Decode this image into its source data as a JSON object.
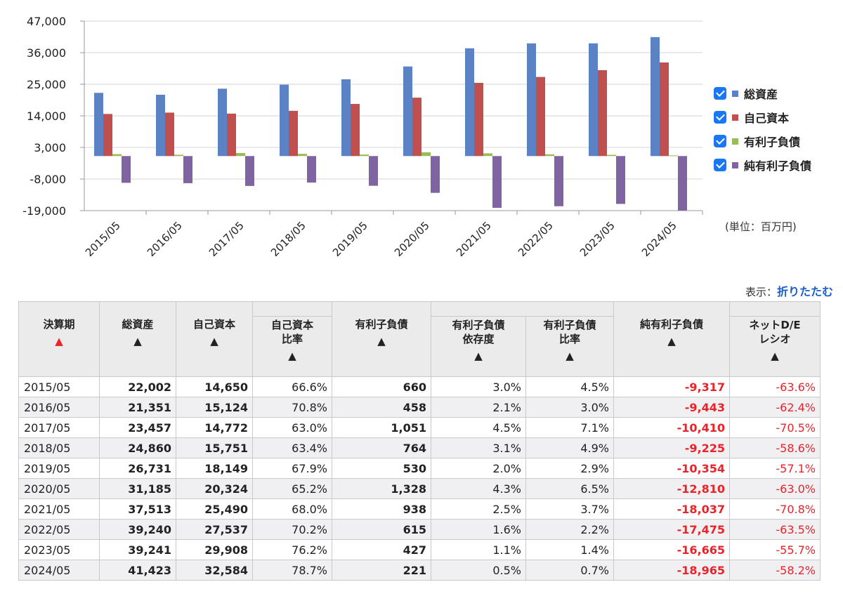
{
  "chart_data": {
    "type": "bar",
    "categories": [
      "2015/05",
      "2016/05",
      "2017/05",
      "2018/05",
      "2019/05",
      "2020/05",
      "2021/05",
      "2022/05",
      "2023/05",
      "2024/05"
    ],
    "series": [
      {
        "name": "総資産",
        "color": "#5b82c4",
        "values": [
          22002,
          21351,
          23457,
          24860,
          26731,
          31185,
          37513,
          39240,
          39241,
          41423
        ]
      },
      {
        "name": "自己資本",
        "color": "#c0504d",
        "values": [
          14650,
          15124,
          14772,
          15751,
          18149,
          20324,
          25490,
          27537,
          29908,
          32584
        ]
      },
      {
        "name": "有利子負債",
        "color": "#9bbb59",
        "values": [
          660,
          458,
          1051,
          764,
          530,
          1328,
          938,
          615,
          427,
          221
        ]
      },
      {
        "name": "純有利子負債",
        "color": "#8064a2",
        "values": [
          -9317,
          -9443,
          -10410,
          -9225,
          -10354,
          -12810,
          -18037,
          -17475,
          -16665,
          -18965
        ]
      }
    ],
    "yticks": [
      "47,000",
      "36,000",
      "25,000",
      "14,000",
      "3,000",
      "-8,000",
      "-19,000"
    ],
    "ylim": [
      -19000,
      47000
    ],
    "legend_position": "right",
    "grid": true,
    "unit": "(単位：百万円)"
  },
  "display": {
    "label": "表示：",
    "link": "折りたたむ"
  },
  "table": {
    "headers": {
      "period": "決算期",
      "total_assets": "総資産",
      "equity": "自己資本",
      "equity_ratio_1": "自己資本",
      "equity_ratio_2": "比率",
      "debt": "有利子負債",
      "dep_1": "有利子負債",
      "dep_2": "依存度",
      "debt_ratio_1": "有利子負債",
      "debt_ratio_2": "比率",
      "net_debt": "純有利子負債",
      "de_1": "ネットD/E",
      "de_2": "レシオ",
      "sort_up": "▲"
    },
    "rows": [
      {
        "period": "2015/05",
        "total_assets": "22,002",
        "equity": "14,650",
        "equity_ratio": "66.6%",
        "debt": "660",
        "dependency": "3.0%",
        "debt_ratio": "4.5%",
        "net_debt": "-9,317",
        "net_de": "-63.6%"
      },
      {
        "period": "2016/05",
        "total_assets": "21,351",
        "equity": "15,124",
        "equity_ratio": "70.8%",
        "debt": "458",
        "dependency": "2.1%",
        "debt_ratio": "3.0%",
        "net_debt": "-9,443",
        "net_de": "-62.4%"
      },
      {
        "period": "2017/05",
        "total_assets": "23,457",
        "equity": "14,772",
        "equity_ratio": "63.0%",
        "debt": "1,051",
        "dependency": "4.5%",
        "debt_ratio": "7.1%",
        "net_debt": "-10,410",
        "net_de": "-70.5%"
      },
      {
        "period": "2018/05",
        "total_assets": "24,860",
        "equity": "15,751",
        "equity_ratio": "63.4%",
        "debt": "764",
        "dependency": "3.1%",
        "debt_ratio": "4.9%",
        "net_debt": "-9,225",
        "net_de": "-58.6%"
      },
      {
        "period": "2019/05",
        "total_assets": "26,731",
        "equity": "18,149",
        "equity_ratio": "67.9%",
        "debt": "530",
        "dependency": "2.0%",
        "debt_ratio": "2.9%",
        "net_debt": "-10,354",
        "net_de": "-57.1%"
      },
      {
        "period": "2020/05",
        "total_assets": "31,185",
        "equity": "20,324",
        "equity_ratio": "65.2%",
        "debt": "1,328",
        "dependency": "4.3%",
        "debt_ratio": "6.5%",
        "net_debt": "-12,810",
        "net_de": "-63.0%"
      },
      {
        "period": "2021/05",
        "total_assets": "37,513",
        "equity": "25,490",
        "equity_ratio": "68.0%",
        "debt": "938",
        "dependency": "2.5%",
        "debt_ratio": "3.7%",
        "net_debt": "-18,037",
        "net_de": "-70.8%"
      },
      {
        "period": "2022/05",
        "total_assets": "39,240",
        "equity": "27,537",
        "equity_ratio": "70.2%",
        "debt": "615",
        "dependency": "1.6%",
        "debt_ratio": "2.2%",
        "net_debt": "-17,475",
        "net_de": "-63.5%"
      },
      {
        "period": "2023/05",
        "total_assets": "39,241",
        "equity": "29,908",
        "equity_ratio": "76.2%",
        "debt": "427",
        "dependency": "1.1%",
        "debt_ratio": "1.4%",
        "net_debt": "-16,665",
        "net_de": "-55.7%"
      },
      {
        "period": "2024/05",
        "total_assets": "41,423",
        "equity": "32,584",
        "equity_ratio": "78.7%",
        "debt": "221",
        "dependency": "0.5%",
        "debt_ratio": "0.7%",
        "net_debt": "-18,965",
        "net_de": "-58.2%"
      }
    ]
  }
}
